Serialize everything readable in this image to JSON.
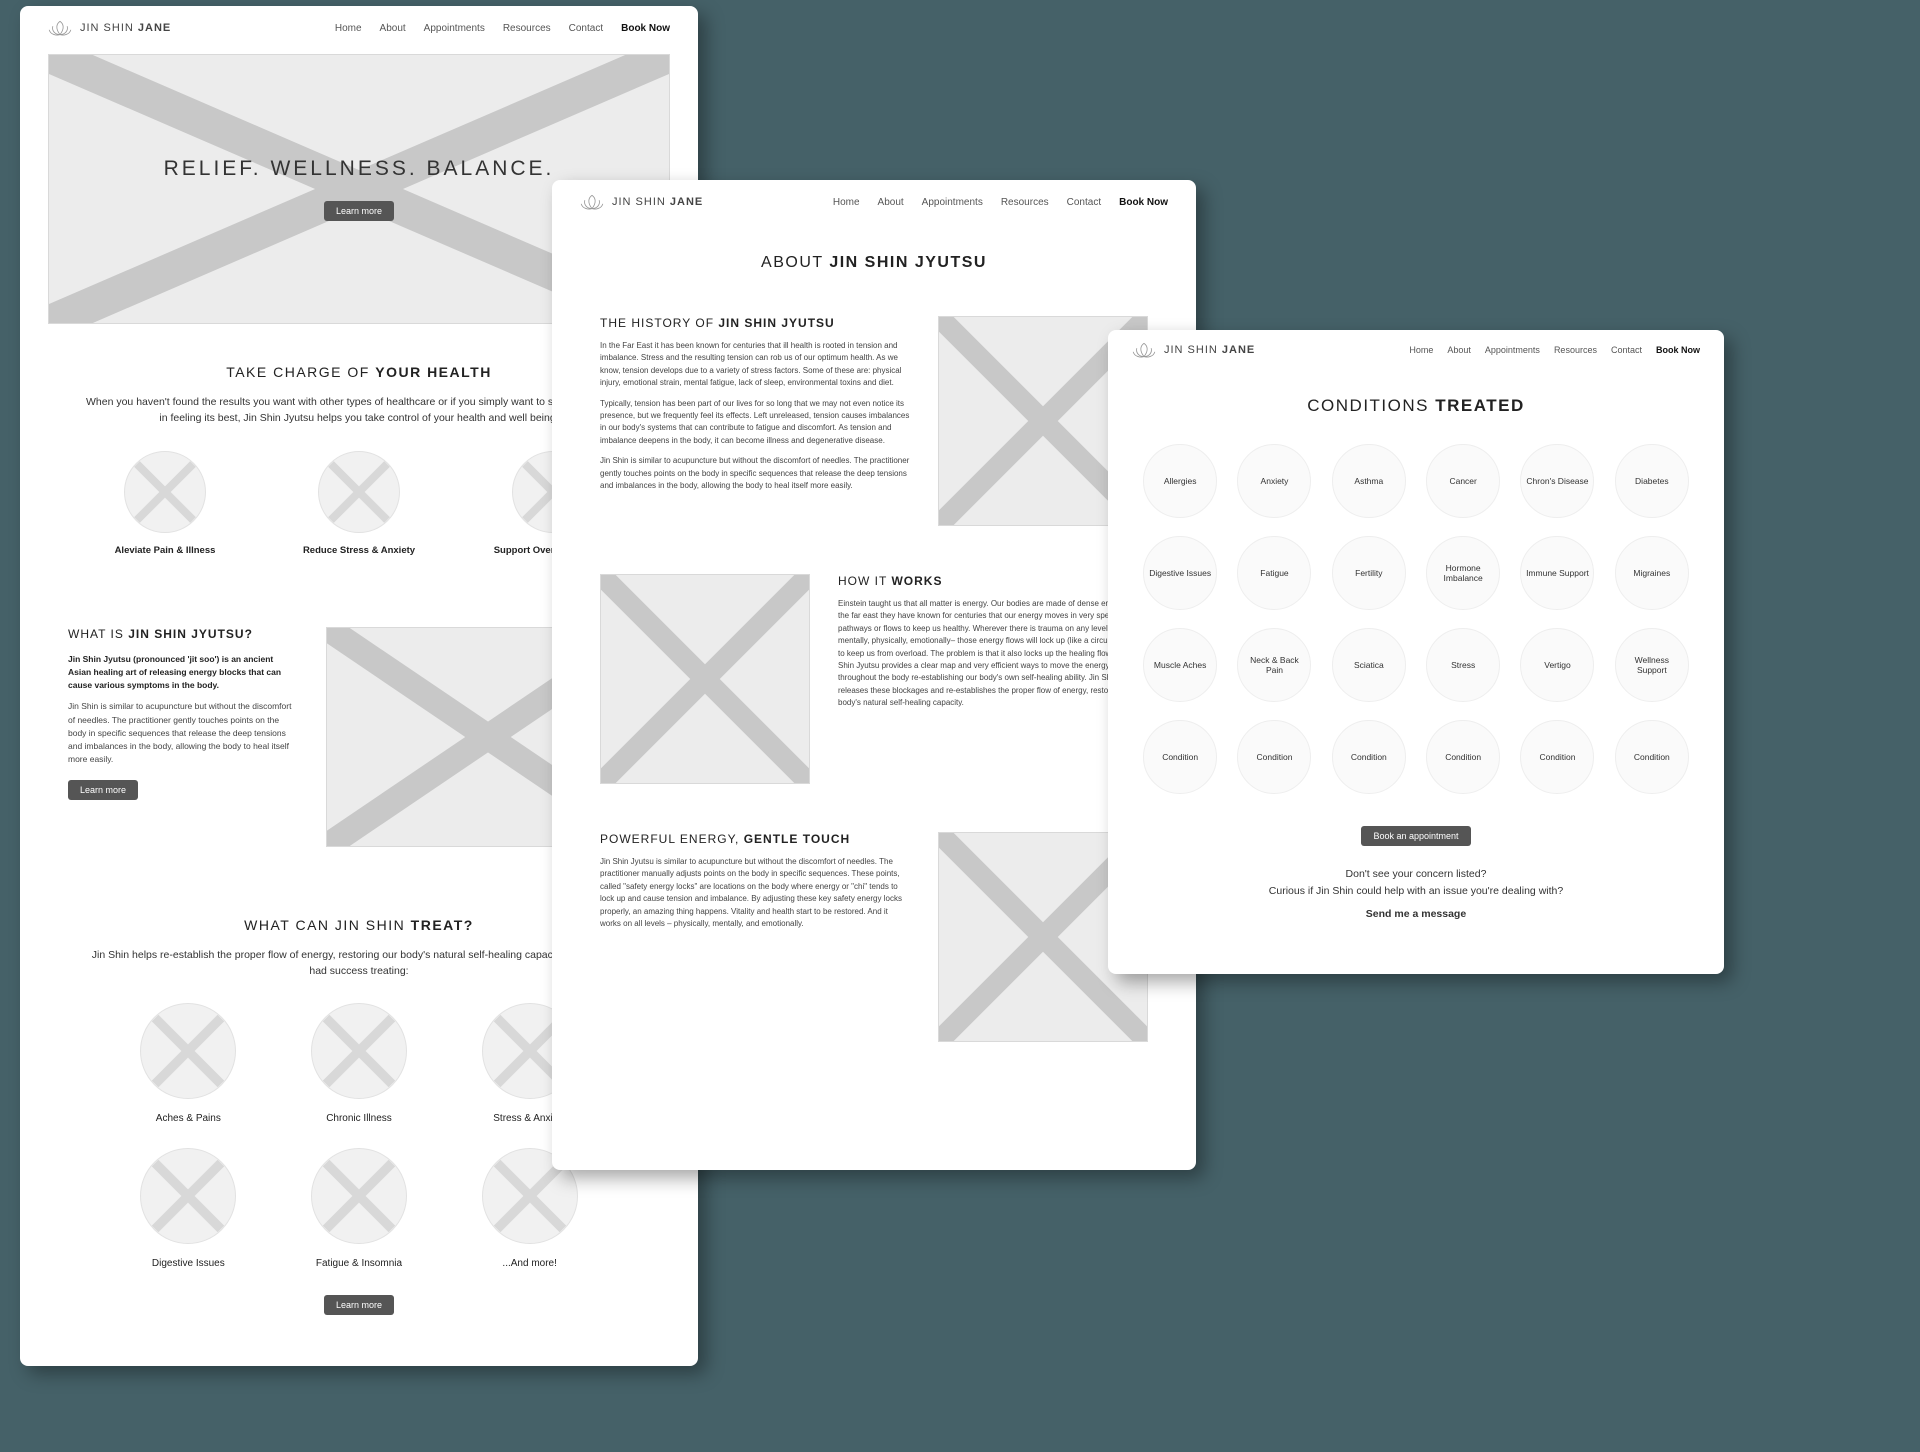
{
  "brand": {
    "line1": "JIN SHIN",
    "line2": "JANE"
  },
  "nav": [
    "Home",
    "About",
    "Appointments",
    "Resources",
    "Contact",
    "Book Now"
  ],
  "mock1": {
    "hero_title": "RELIEF. WELLNESS. BALANCE.",
    "hero_btn": "Learn more",
    "sec1_title_a": "TAKE CHARGE OF ",
    "sec1_title_b": "YOUR HEALTH",
    "sec1_lead": "When you haven't found the results you want with other types of healthcare or if you simply want to support your body in feeling its best, Jin Shin Jyutsu helps you take control of your health and well being.",
    "trio": [
      "Aleviate Pain & Illness",
      "Reduce Stress & Anxiety",
      "Support Overall Wellbeing"
    ],
    "split_title_a": "WHAT IS ",
    "split_title_b": "JIN SHIN JYUTSU?",
    "split_p1": "Jin Shin Jyutsu (pronounced 'jit soo') is an ancient Asian healing art of releasing energy blocks that can cause various symptoms in the body.",
    "split_p2": "Jin Shin is similar to acupuncture but without the discomfort of needles. The practitioner gently touches points on the body in specific sequences that release the deep tensions and imbalances in the body, allowing the body to heal itself more easily.",
    "split_btn": "Learn more",
    "sec3_title_a": "WHAT CAN JIN SHIN ",
    "sec3_title_b": "TREAT?",
    "sec3_lead": "Jin Shin helps re-establish the proper flow of energy, restoring our body's natural self-healing capacity. Clients have had success treating:",
    "six": [
      "Aches & Pains",
      "Chronic Illness",
      "Stress & Anxiety",
      "Digestive Issues",
      "Fatigue & Insomnia",
      "...And more!"
    ],
    "sec3_btn": "Learn more"
  },
  "mock2": {
    "title_a": "ABOUT ",
    "title_b": "JIN SHIN JYUTSU",
    "r1_title_a": "THE HISTORY OF ",
    "r1_title_b": "JIN SHIN JYUTSU",
    "r1_p1": "In the Far East it has been known for centuries that ill health is rooted in tension and imbalance. Stress and the resulting tension can rob us of our optimum health. As we know, tension develops due to a variety of stress factors. Some of these are: physical injury, emotional strain, mental fatigue, lack of sleep, environmental toxins and diet.",
    "r1_p2": "Typically, tension has been part of our lives for so long that we may not even notice its presence, but we frequently feel its effects. Left unreleased, tension causes imbalances in our body's systems that can contribute to fatigue and discomfort. As tension and imbalance deepens in the body, it can become illness and degenerative disease.",
    "r1_p3": "Jin Shin is similar to acupuncture but without the discomfort of needles. The practitioner gently touches points on the body in specific sequences that release the deep tensions and imbalances in the body, allowing the body to heal itself more easily.",
    "r2_title_a": "HOW IT ",
    "r2_title_b": "WORKS",
    "r2_p1": "Einstein taught us that all matter is energy. Our bodies are made of dense energy. In the far east they have known for centuries that our energy moves in very specific pathways or flows to keep us healthy. Wherever there is trauma on any level – mentally, physically, emotionally– those energy flows will lock up (like a circuit breaker) to keep us from overload. The problem is that it also locks up the healing flows. Jin Shin Jyutsu provides a clear map and very efficient ways to move the energy throughout the body re-establishing our body's own self-healing ability. Jin Shin Jyutsu releases these blockages and re-establishes the proper flow of energy, restoring our body's natural self-healing capacity.",
    "r3_title_a": "POWERFUL ENERGY, ",
    "r3_title_b": "GENTLE TOUCH",
    "r3_p1": "Jin Shin Jyutsu is similar to acupuncture but without the discomfort of needles. The practitioner manually adjusts points on the body in specific sequences. These points, called \"safety energy locks\" are locations on the body where energy or \"chi\" tends to lock up and cause tension and imbalance. By adjusting these key safety energy locks properly, an amazing thing happens. Vitality and health start to be restored. And it works on all levels – physically, mentally, and emotionally."
  },
  "mock3": {
    "title_a": "CONDITIONS ",
    "title_b": "TREATED",
    "conditions": [
      "Allergies",
      "Anxiety",
      "Asthma",
      "Cancer",
      "Chron's Disease",
      "Diabetes",
      "Digestive Issues",
      "Fatigue",
      "Fertility",
      "Hormone Imbalance",
      "Immune Support",
      "Migraines",
      "Muscle Aches",
      "Neck & Back Pain",
      "Sciatica",
      "Stress",
      "Vertigo",
      "Wellness Support",
      "Condition",
      "Condition",
      "Condition",
      "Condition",
      "Condition",
      "Condition"
    ],
    "btn": "Book an appointment",
    "line1": "Don't see your concern listed?",
    "line2": "Curious if Jin Shin could help with an issue you're dealing with?",
    "msg": "Send me a message"
  }
}
